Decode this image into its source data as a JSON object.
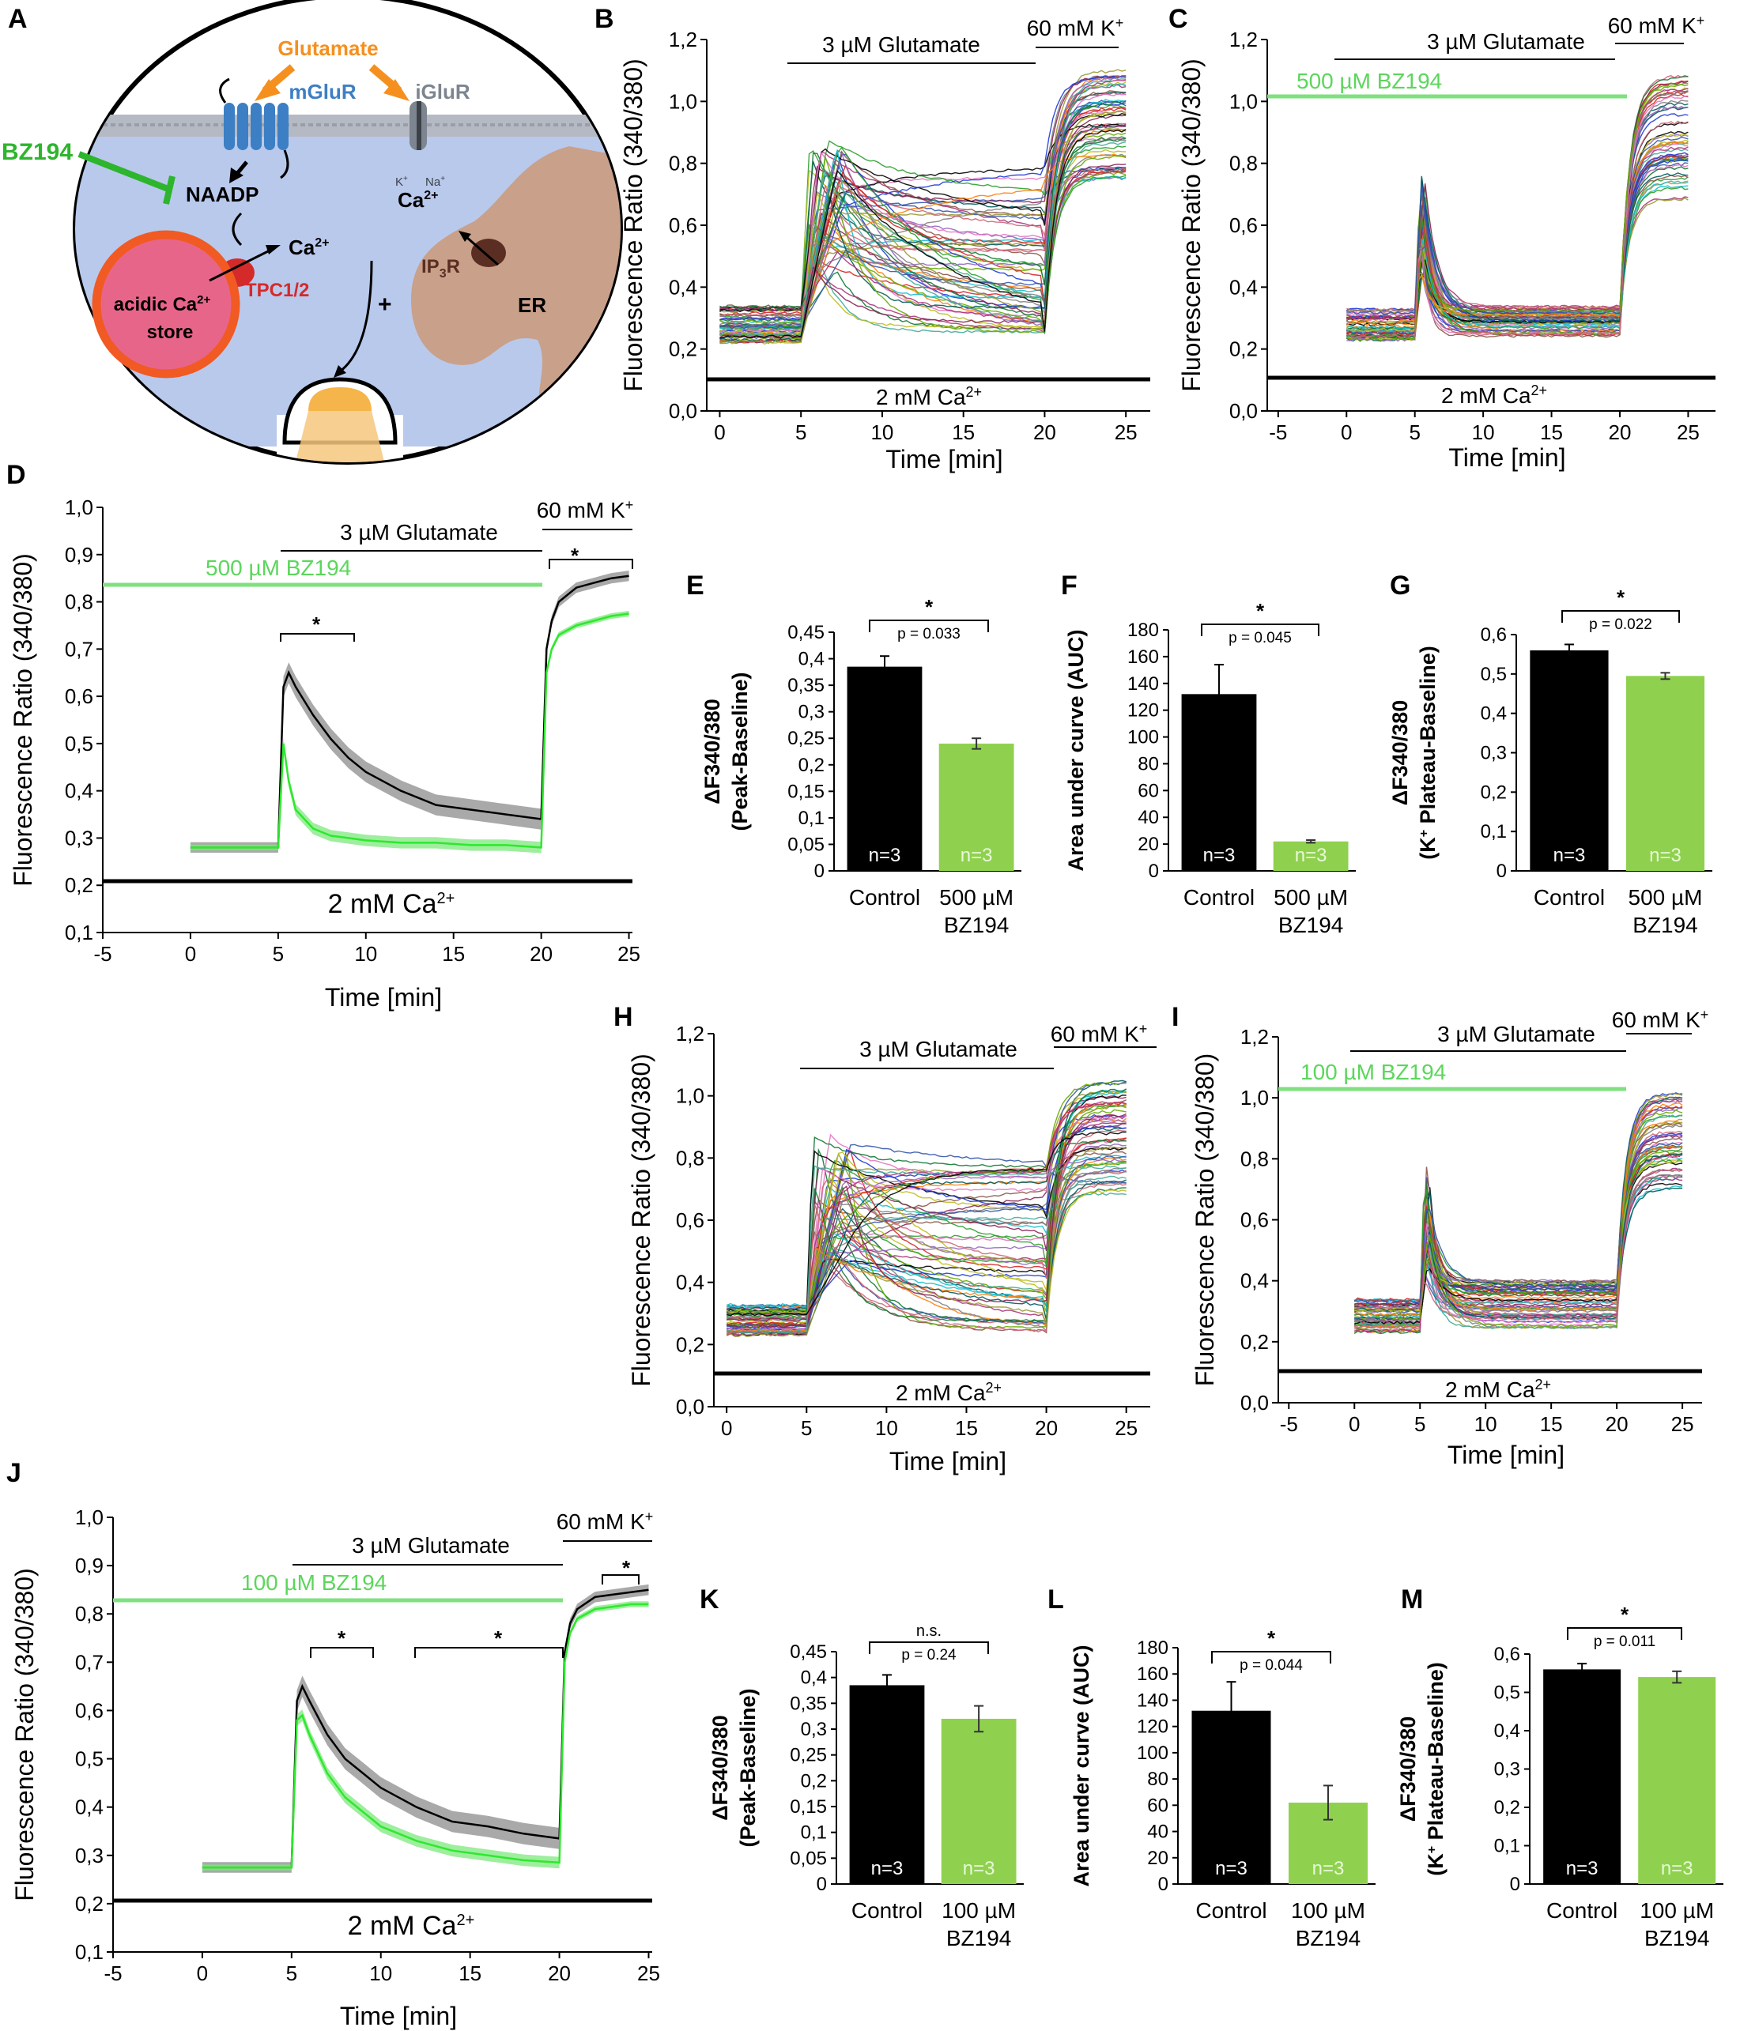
{
  "panels": {
    "a": "A",
    "b": "B",
    "c": "C",
    "d": "D",
    "e": "E",
    "f": "F",
    "g": "G",
    "h": "H",
    "i": "I",
    "j": "J",
    "k": "K",
    "l": "L",
    "m": "M"
  },
  "common": {
    "ylabel_ratio": "Fluorescence Ratio (340/380)",
    "xlabel_time": "Time [min]",
    "glutamate": "3 µM Glutamate",
    "kplus": "60 mM K",
    "kplus_sup": "+",
    "calcium": "2 mM Ca",
    "calcium_sup": "2+",
    "control": "Control",
    "n3": "n=3"
  },
  "diagram": {
    "glutamate": "Glutamate",
    "mglur": "mGluR",
    "iglur": "iGluR",
    "bz194": "BZ194",
    "naadp": "NAADP",
    "ca": "Ca",
    "ca_sup": "2+",
    "k": "K",
    "na": "Na",
    "ion_sup": "+",
    "tpc": "TPC1/2",
    "ip3r": "IP",
    "ip3r_sub": "3",
    "ip3r_r": "R",
    "er": "ER",
    "acidic": "acidic Ca",
    "store": "store",
    "plus": "+",
    "colors": {
      "glutamate": "#f5901e",
      "mglur": "#3d7fc4",
      "bz194": "#2db52d",
      "tpc": "#d42a2a",
      "store_fill": "#e8658a",
      "store_ring": "#f15a22",
      "cell": "#b9c9ec",
      "er": "#c9a089"
    }
  },
  "treatments": {
    "bz500": "500 µM BZ194",
    "bz100": "100 µM BZ194",
    "dose500": "500 µM",
    "dose100": "100 µM",
    "bz": "BZ194"
  },
  "bar_axes": {
    "peak_line1": "ΔF340/380",
    "peak_line2": "(Peak-Baseline)",
    "auc": "Area under curve (AUC)",
    "plateau_line1": "ΔF340/380",
    "plateau_line2_pre": "(K",
    "plateau_line2_post": " Plateau-Baseline)"
  },
  "stats": {
    "star": "*",
    "ns": "n.s.",
    "e_p": "p = 0.033",
    "f_p": "p = 0.045",
    "g_p": "p = 0.022",
    "k_p": "p = 0.24",
    "l_p": "p = 0.044",
    "m_p": "p = 0.011"
  },
  "chart_data": [
    {
      "panel": "B",
      "type": "line",
      "title": "",
      "xlabel": "Time [min]",
      "ylabel": "Fluorescence Ratio (340/380)",
      "xlim": [
        0,
        25
      ],
      "ylim": [
        0,
        1.2
      ],
      "xticks": [
        0,
        5,
        10,
        15,
        20,
        25
      ],
      "yticks": [
        0,
        0.2,
        0.4,
        0.6,
        0.8,
        1.0,
        1.2
      ],
      "baseline": [
        0.22,
        0.34
      ],
      "peak": [
        0.45,
        0.88
      ],
      "late": [
        0.25,
        0.8
      ],
      "k_plateau": [
        0.75,
        1.1
      ],
      "n_traces": 60
    },
    {
      "panel": "C",
      "type": "line",
      "xlabel": "Time [min]",
      "ylabel": "Fluorescence Ratio (340/380)",
      "xlim": [
        -5,
        25
      ],
      "ylim": [
        0,
        1.2
      ],
      "xticks": [
        -5,
        0,
        5,
        10,
        15,
        20,
        25
      ],
      "yticks": [
        0,
        0.2,
        0.4,
        0.6,
        0.8,
        1.0,
        1.2
      ],
      "baseline": [
        0.23,
        0.33
      ],
      "peak": [
        0.45,
        0.78
      ],
      "late": [
        0.24,
        0.34
      ],
      "k_plateau": [
        0.65,
        1.1
      ],
      "n_traces": 55
    },
    {
      "panel": "D",
      "type": "line",
      "xlabel": "Time [min]",
      "ylabel": "Fluorescence Ratio (340/380)",
      "xlim": [
        -5,
        25
      ],
      "ylim": [
        0.1,
        1.0
      ],
      "xticks": [
        -5,
        0,
        5,
        10,
        15,
        20,
        25
      ],
      "yticks": [
        0.1,
        0.2,
        0.3,
        0.4,
        0.5,
        0.6,
        0.7,
        0.8,
        0.9,
        1.0
      ],
      "series": [
        {
          "name": "Control",
          "x": [
            0,
            5,
            5.3,
            5.6,
            6,
            7,
            8,
            9,
            10,
            12,
            14,
            16,
            18,
            20,
            20.3,
            20.6,
            21,
            22,
            23,
            24,
            25
          ],
          "y": [
            0.28,
            0.28,
            0.62,
            0.65,
            0.62,
            0.56,
            0.51,
            0.47,
            0.44,
            0.4,
            0.37,
            0.36,
            0.35,
            0.34,
            0.7,
            0.76,
            0.8,
            0.83,
            0.84,
            0.85,
            0.855
          ]
        },
        {
          "name": "500 µM BZ194",
          "x": [
            0,
            5,
            5.3,
            5.6,
            6,
            7,
            8,
            9,
            10,
            12,
            14,
            16,
            18,
            20,
            20.3,
            20.6,
            21,
            22,
            23,
            24,
            25
          ],
          "y": [
            0.28,
            0.28,
            0.5,
            0.42,
            0.36,
            0.32,
            0.305,
            0.3,
            0.295,
            0.29,
            0.29,
            0.285,
            0.285,
            0.28,
            0.65,
            0.7,
            0.73,
            0.75,
            0.76,
            0.77,
            0.775
          ]
        }
      ]
    },
    {
      "panel": "E",
      "type": "bar",
      "categories": [
        "Control",
        "500 µM BZ194"
      ],
      "values": [
        0.385,
        0.24
      ],
      "errors": [
        0.02,
        0.01
      ],
      "ylim": [
        0,
        0.45
      ],
      "yticks": [
        0,
        0.05,
        0.1,
        0.15,
        0.2,
        0.25,
        0.3,
        0.35,
        0.4,
        0.45
      ],
      "ylabel": "ΔF340/380 (Peak-Baseline)"
    },
    {
      "panel": "F",
      "type": "bar",
      "categories": [
        "Control",
        "500 µM BZ194"
      ],
      "values": [
        132,
        22
      ],
      "errors": [
        22,
        1
      ],
      "ylim": [
        0,
        180
      ],
      "yticks": [
        0,
        20,
        40,
        60,
        80,
        100,
        120,
        140,
        160,
        180
      ],
      "ylabel": "Area under curve (AUC)"
    },
    {
      "panel": "G",
      "type": "bar",
      "categories": [
        "Control",
        "500 µM BZ194"
      ],
      "values": [
        0.56,
        0.495
      ],
      "errors": [
        0.015,
        0.008
      ],
      "ylim": [
        0,
        0.6
      ],
      "yticks": [
        0,
        0.1,
        0.2,
        0.3,
        0.4,
        0.5,
        0.6
      ],
      "ylabel": "ΔF340/380 (K+ Plateau-Baseline)"
    },
    {
      "panel": "H",
      "type": "line",
      "xlabel": "Time [min]",
      "ylabel": "Fluorescence Ratio (340/380)",
      "xlim": [
        0,
        25
      ],
      "ylim": [
        0,
        1.2
      ],
      "xticks": [
        0,
        5,
        10,
        15,
        20,
        25
      ],
      "yticks": [
        0,
        0.2,
        0.4,
        0.6,
        0.8,
        1.0,
        1.2
      ],
      "baseline": [
        0.23,
        0.33
      ],
      "peak": [
        0.45,
        0.88
      ],
      "late": [
        0.24,
        0.78
      ],
      "k_plateau": [
        0.68,
        1.05
      ],
      "n_traces": 60
    },
    {
      "panel": "I",
      "type": "line",
      "xlabel": "Time [min]",
      "ylabel": "Fluorescence Ratio (340/380)",
      "xlim": [
        -5,
        25
      ],
      "ylim": [
        0,
        1.2
      ],
      "xticks": [
        -5,
        0,
        5,
        10,
        15,
        20,
        25
      ],
      "yticks": [
        0,
        0.2,
        0.4,
        0.6,
        0.8,
        1.0,
        1.2
      ],
      "baseline": [
        0.23,
        0.34
      ],
      "peak": [
        0.4,
        0.8
      ],
      "late": [
        0.24,
        0.4
      ],
      "k_plateau": [
        0.7,
        1.02
      ],
      "n_traces": 55
    },
    {
      "panel": "J",
      "type": "line",
      "xlabel": "Time [min]",
      "ylabel": "Fluorescence Ratio (340/380)",
      "xlim": [
        -5,
        25
      ],
      "ylim": [
        0.1,
        1.0
      ],
      "xticks": [
        -5,
        0,
        5,
        10,
        15,
        20,
        25
      ],
      "yticks": [
        0.1,
        0.2,
        0.3,
        0.4,
        0.5,
        0.6,
        0.7,
        0.8,
        0.9,
        1.0
      ],
      "series": [
        {
          "name": "Control",
          "x": [
            0,
            5,
            5.3,
            5.6,
            6,
            7,
            8,
            9,
            10,
            12,
            14,
            16,
            18,
            20,
            20.3,
            20.6,
            21,
            22,
            23,
            24,
            25
          ],
          "y": [
            0.275,
            0.275,
            0.62,
            0.65,
            0.62,
            0.55,
            0.5,
            0.47,
            0.44,
            0.4,
            0.37,
            0.36,
            0.345,
            0.335,
            0.72,
            0.78,
            0.81,
            0.835,
            0.84,
            0.845,
            0.85
          ]
        },
        {
          "name": "100 µM BZ194",
          "x": [
            0,
            5,
            5.3,
            5.6,
            6,
            7,
            8,
            9,
            10,
            12,
            14,
            16,
            18,
            20,
            20.3,
            20.6,
            21,
            22,
            23,
            24,
            25
          ],
          "y": [
            0.275,
            0.275,
            0.58,
            0.59,
            0.55,
            0.47,
            0.42,
            0.39,
            0.36,
            0.33,
            0.31,
            0.3,
            0.29,
            0.285,
            0.7,
            0.76,
            0.79,
            0.81,
            0.815,
            0.82,
            0.82
          ]
        }
      ]
    },
    {
      "panel": "K",
      "type": "bar",
      "categories": [
        "Control",
        "100 µM BZ194"
      ],
      "values": [
        0.385,
        0.32
      ],
      "errors": [
        0.02,
        0.025
      ],
      "ylim": [
        0,
        0.45
      ],
      "yticks": [
        0,
        0.05,
        0.1,
        0.15,
        0.2,
        0.25,
        0.3,
        0.35,
        0.4,
        0.45
      ],
      "ylabel": "ΔF340/380 (Peak-Baseline)"
    },
    {
      "panel": "L",
      "type": "bar",
      "categories": [
        "Control",
        "100 µM BZ194"
      ],
      "values": [
        132,
        62
      ],
      "errors": [
        22,
        13
      ],
      "ylim": [
        0,
        180
      ],
      "yticks": [
        0,
        20,
        40,
        60,
        80,
        100,
        120,
        140,
        160,
        180
      ],
      "ylabel": "Area under curve (AUC)"
    },
    {
      "panel": "M",
      "type": "bar",
      "categories": [
        "Control",
        "100 µM BZ194"
      ],
      "values": [
        0.56,
        0.54
      ],
      "errors": [
        0.015,
        0.015
      ],
      "ylim": [
        0,
        0.6
      ],
      "yticks": [
        0,
        0.1,
        0.2,
        0.3,
        0.4,
        0.5,
        0.6
      ],
      "ylabel": "ΔF340/380 (K+ Plateau-Baseline)"
    }
  ]
}
